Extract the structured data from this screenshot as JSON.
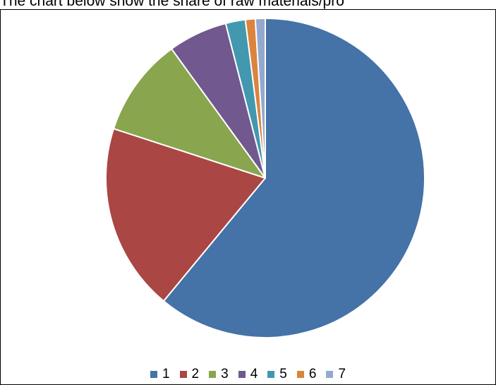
{
  "heading": "The chart below show the share of raw materials/pro",
  "chart_data": {
    "type": "pie",
    "categories": [
      "1",
      "2",
      "3",
      "4",
      "5",
      "6",
      "7"
    ],
    "values": [
      61,
      19,
      10,
      6,
      2,
      1,
      1
    ],
    "unit": "percent",
    "start_angle_deg": 0,
    "direction": "clockwise",
    "colors": [
      "#4572A7",
      "#AA4643",
      "#89A54E",
      "#71588F",
      "#4198AF",
      "#DB843D",
      "#93A9CF"
    ],
    "slice_border_color": "#FFFFFF",
    "legend_position": "bottom"
  }
}
